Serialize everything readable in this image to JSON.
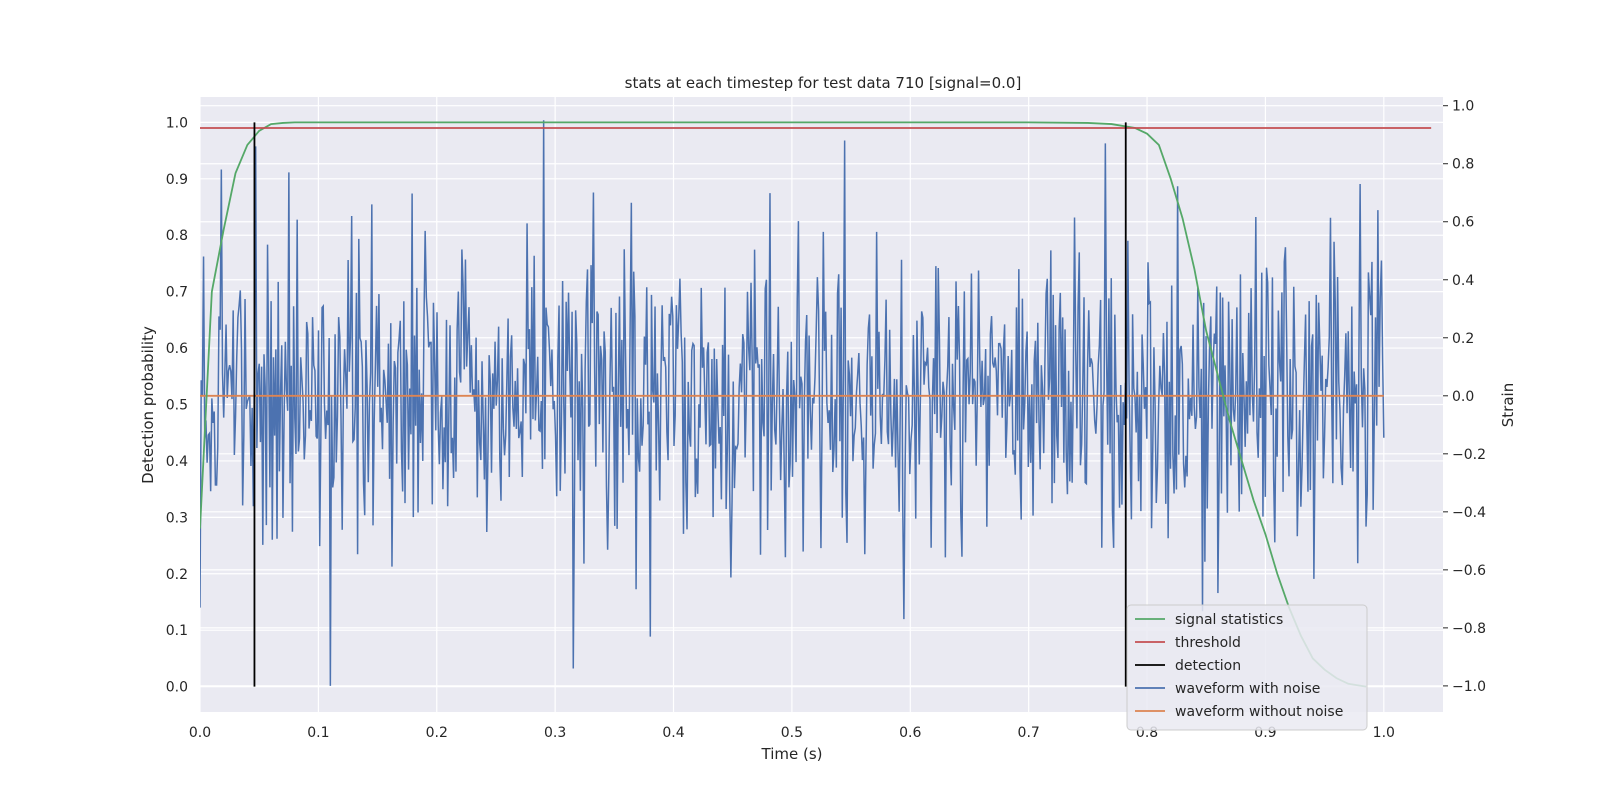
{
  "chart_data": {
    "type": "line",
    "title": "stats at each timestep for test data 710 [signal=0.0]",
    "xlabel": "Time (s)",
    "ylabel": "Detection probability",
    "y2label": "Strain",
    "xlim": [
      0.0,
      1.05
    ],
    "ylim": [
      -0.045,
      1.045
    ],
    "y2lim": [
      -1.09,
      1.03
    ],
    "xticks": [
      "0.0",
      "0.1",
      "0.2",
      "0.3",
      "0.4",
      "0.5",
      "0.6",
      "0.7",
      "0.8",
      "0.9",
      "1.0"
    ],
    "yticks": [
      "0.0",
      "0.1",
      "0.2",
      "0.3",
      "0.4",
      "0.5",
      "0.6",
      "0.7",
      "0.8",
      "0.9",
      "1.0"
    ],
    "y2ticks": [
      "−1.0",
      "−0.8",
      "−0.6",
      "−0.4",
      "−0.2",
      "0.0",
      "0.2",
      "0.4",
      "0.6",
      "0.8",
      "1.0"
    ],
    "grid": true,
    "legend_position": "lower-right",
    "colors": {
      "signal": "#55a868",
      "threshold": "#c44e52",
      "detection": "#000000",
      "noisy": "#4c72b0",
      "clean": "#dd8452",
      "plot_bg": "#eaeaf2",
      "grid": "#ffffff"
    },
    "legend": [
      {
        "label": "signal statistics",
        "color": "#55a868"
      },
      {
        "label": "threshold",
        "color": "#c44e52"
      },
      {
        "label": "detection",
        "color": "#000000"
      },
      {
        "label": "waveform with noise",
        "color": "#4c72b0"
      },
      {
        "label": "waveform without noise",
        "color": "#dd8452"
      }
    ],
    "threshold": {
      "y": 0.99,
      "x_range": [
        0.0,
        1.04
      ]
    },
    "detections": [
      {
        "x": 0.046,
        "y_range": [
          0.0,
          1.0
        ]
      },
      {
        "x": 0.782,
        "y_range": [
          0.0,
          1.0
        ]
      }
    ],
    "signal_statistics": {
      "x": [
        0.0,
        0.01,
        0.02,
        0.03,
        0.04,
        0.05,
        0.06,
        0.07,
        0.08,
        0.1,
        0.2,
        0.3,
        0.4,
        0.5,
        0.6,
        0.7,
        0.75,
        0.77,
        0.79,
        0.8,
        0.81,
        0.82,
        0.83,
        0.84,
        0.85,
        0.86,
        0.87,
        0.88,
        0.89,
        0.9,
        0.91,
        0.92,
        0.93,
        0.94,
        0.95,
        0.96,
        0.97,
        0.985
      ],
      "y": [
        0.28,
        0.7,
        0.81,
        0.91,
        0.96,
        0.985,
        0.997,
        0.999,
        1.0,
        1.0,
        1.0,
        1.0,
        1.0,
        1.0,
        1.0,
        1.0,
        0.999,
        0.997,
        0.99,
        0.98,
        0.96,
        0.9,
        0.83,
        0.74,
        0.63,
        0.55,
        0.47,
        0.4,
        0.33,
        0.27,
        0.2,
        0.14,
        0.09,
        0.05,
        0.03,
        0.015,
        0.005,
        0.0
      ]
    },
    "waveform_without_noise": {
      "x": [
        0.0,
        1.0
      ],
      "strain": [
        0.0,
        0.0
      ]
    },
    "waveform_with_noise": {
      "x_range": [
        0.0,
        1.0
      ],
      "n_points": 1000,
      "strain_min": -1.0,
      "strain_max": 1.0,
      "peaks": [
        {
          "x": 0.0,
          "strain": -0.73
        },
        {
          "x": 0.003,
          "strain": 0.48
        },
        {
          "x": 0.018,
          "strain": 0.78
        },
        {
          "x": 0.047,
          "strain": 0.86
        },
        {
          "x": 0.075,
          "strain": 0.77
        },
        {
          "x": 0.11,
          "strain": -1.0
        },
        {
          "x": 0.145,
          "strain": 0.66
        },
        {
          "x": 0.29,
          "strain": 0.95
        },
        {
          "x": 0.315,
          "strain": -0.94
        },
        {
          "x": 0.38,
          "strain": -0.83
        },
        {
          "x": 0.545,
          "strain": 0.88
        },
        {
          "x": 0.595,
          "strain": -0.77
        },
        {
          "x": 0.765,
          "strain": 0.87
        },
        {
          "x": 0.86,
          "strain": -0.68
        },
        {
          "x": 0.98,
          "strain": 0.73
        },
        {
          "x": 0.995,
          "strain": 0.64
        }
      ]
    }
  }
}
